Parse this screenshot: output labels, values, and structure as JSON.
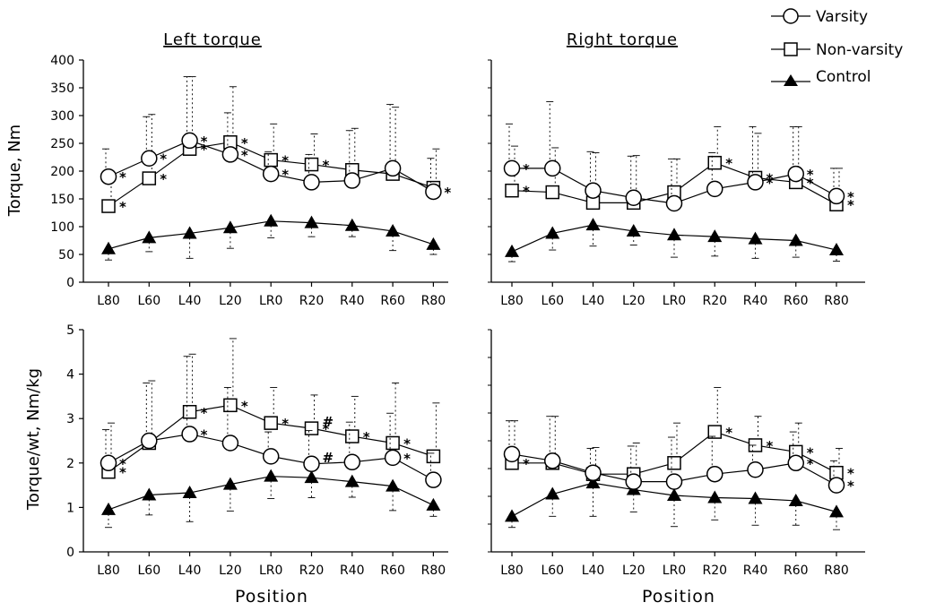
{
  "legend": {
    "varsity": "Varsity",
    "nonvarsity": "Non-varsity",
    "control": "Control"
  },
  "chart_data": [
    {
      "type": "line",
      "title": "Left torque",
      "ylabel": "Torque, Nm",
      "xlabel": "",
      "ylim": [
        0,
        400
      ],
      "yticks": [
        "0",
        "50",
        "100",
        "150",
        "200",
        "250",
        "300",
        "350",
        "400"
      ],
      "categories": [
        "L80",
        "L60",
        "L40",
        "L20",
        "LR0",
        "R20",
        "R40",
        "R60",
        "R80"
      ],
      "series": [
        {
          "name": "Varsity",
          "marker": "circle",
          "values": [
            190,
            223,
            255,
            230,
            195,
            180,
            183,
            205,
            163
          ],
          "errors": [
            50,
            75,
            115,
            75,
            40,
            50,
            90,
            115,
            60
          ],
          "stars": [
            1,
            1,
            1,
            1,
            1,
            0,
            0,
            0,
            1
          ],
          "hashes": [
            0,
            0,
            0,
            0,
            0,
            0,
            0,
            0,
            0
          ]
        },
        {
          "name": "Non-varsity",
          "marker": "square",
          "values": [
            137,
            187,
            240,
            252,
            220,
            212,
            202,
            195,
            170
          ],
          "errors": [
            55,
            115,
            130,
            100,
            65,
            55,
            75,
            120,
            70
          ],
          "stars": [
            1,
            1,
            1,
            1,
            1,
            1,
            0,
            0,
            0
          ],
          "hashes": [
            0,
            0,
            0,
            0,
            0,
            0,
            0,
            0,
            0
          ]
        },
        {
          "name": "Control",
          "marker": "triangle",
          "values": [
            60,
            80,
            88,
            98,
            110,
            107,
            102,
            92,
            68
          ],
          "errors": [
            20,
            25,
            45,
            37,
            30,
            25,
            20,
            35,
            18
          ],
          "stars": [
            0,
            0,
            0,
            0,
            0,
            0,
            0,
            0,
            0
          ],
          "hashes": [
            0,
            0,
            0,
            0,
            0,
            0,
            0,
            0,
            0
          ]
        }
      ]
    },
    {
      "type": "line",
      "title": "Right torque",
      "ylabel": "",
      "xlabel": "",
      "ylim": [
        0,
        400
      ],
      "yticks": [],
      "categories": [
        "L80",
        "L60",
        "L40",
        "L20",
        "LR0",
        "R20",
        "R40",
        "R60",
        "R80"
      ],
      "series": [
        {
          "name": "Varsity",
          "marker": "circle",
          "values": [
            205,
            205,
            165,
            152,
            142,
            168,
            180,
            195,
            155
          ],
          "errors": [
            80,
            120,
            70,
            75,
            80,
            65,
            100,
            85,
            50
          ],
          "stars": [
            1,
            0,
            0,
            0,
            0,
            0,
            1,
            1,
            1
          ],
          "hashes": [
            0,
            0,
            0,
            0,
            0,
            0,
            0,
            0,
            0
          ]
        },
        {
          "name": "Non-varsity",
          "marker": "square",
          "values": [
            165,
            162,
            143,
            143,
            162,
            215,
            188,
            180,
            140
          ],
          "errors": [
            80,
            80,
            90,
            85,
            60,
            65,
            80,
            100,
            65
          ],
          "stars": [
            1,
            0,
            0,
            0,
            0,
            1,
            1,
            1,
            1
          ],
          "hashes": [
            0,
            0,
            0,
            0,
            0,
            0,
            0,
            0,
            0
          ]
        },
        {
          "name": "Control",
          "marker": "triangle",
          "values": [
            55,
            88,
            103,
            92,
            85,
            82,
            78,
            75,
            58
          ],
          "errors": [
            18,
            30,
            38,
            25,
            40,
            35,
            35,
            30,
            20
          ],
          "stars": [
            0,
            0,
            0,
            0,
            0,
            0,
            0,
            0,
            0
          ],
          "hashes": [
            0,
            0,
            0,
            0,
            0,
            0,
            0,
            0,
            0
          ]
        }
      ]
    },
    {
      "type": "line",
      "title": "",
      "ylabel": "Torque/wt, Nm/kg",
      "xlabel": "Position",
      "ylim": [
        0,
        5
      ],
      "yticks": [
        "0",
        "1",
        "2",
        "3",
        "4",
        "5"
      ],
      "categories": [
        "L80",
        "L60",
        "L40",
        "L20",
        "LR0",
        "R20",
        "R40",
        "R60",
        "R80"
      ],
      "series": [
        {
          "name": "Varsity",
          "marker": "circle",
          "values": [
            2.0,
            2.5,
            2.65,
            2.45,
            2.15,
            1.98,
            2.02,
            2.12,
            1.62
          ],
          "errors": [
            0.75,
            1.3,
            1.75,
            1.25,
            0.55,
            0.75,
            0.9,
            1.0,
            0.6
          ],
          "stars": [
            1,
            0,
            1,
            0,
            0,
            0,
            0,
            1,
            0
          ],
          "hashes": [
            0,
            0,
            0,
            0,
            0,
            1,
            0,
            0,
            0
          ]
        },
        {
          "name": "Non-varsity",
          "marker": "square",
          "values": [
            1.8,
            2.45,
            3.15,
            3.3,
            2.9,
            2.78,
            2.6,
            2.45,
            2.15
          ],
          "errors": [
            1.1,
            1.4,
            1.3,
            1.5,
            0.8,
            0.75,
            0.9,
            1.35,
            1.2
          ],
          "stars": [
            1,
            0,
            1,
            1,
            1,
            1,
            1,
            1,
            0
          ],
          "hashes": [
            0,
            0,
            0,
            0,
            0,
            1,
            0,
            0,
            0
          ]
        },
        {
          "name": "Control",
          "marker": "triangle",
          "values": [
            0.95,
            1.28,
            1.33,
            1.52,
            1.7,
            1.67,
            1.58,
            1.48,
            1.05
          ],
          "errors": [
            0.4,
            0.45,
            0.65,
            0.6,
            0.5,
            0.45,
            0.35,
            0.55,
            0.25
          ],
          "stars": [
            0,
            0,
            0,
            0,
            0,
            0,
            0,
            0,
            0
          ],
          "hashes": [
            0,
            0,
            0,
            0,
            0,
            0,
            0,
            0,
            0
          ]
        }
      ]
    },
    {
      "type": "line",
      "title": "",
      "ylabel": "",
      "xlabel": "Position",
      "ylim": [
        0,
        5
      ],
      "yticks": [],
      "categories": [
        "L80",
        "L60",
        "L40",
        "L20",
        "LR0",
        "R20",
        "R40",
        "R60",
        "R80"
      ],
      "series": [
        {
          "name": "Varsity",
          "marker": "circle",
          "values": [
            2.2,
            2.05,
            1.78,
            1.58,
            1.58,
            1.75,
            1.85,
            2.0,
            1.5
          ],
          "errors": [
            0.75,
            1.0,
            0.55,
            0.8,
            1.0,
            0.85,
            0.55,
            0.7,
            0.55
          ],
          "stars": [
            0,
            0,
            0,
            0,
            0,
            0,
            0,
            1,
            1
          ],
          "hashes": [
            0,
            0,
            0,
            0,
            0,
            0,
            0,
            0,
            0
          ]
        },
        {
          "name": "Non-varsity",
          "marker": "square",
          "values": [
            2.0,
            2.0,
            1.75,
            1.75,
            2.0,
            2.7,
            2.4,
            2.25,
            1.78
          ],
          "errors": [
            0.95,
            1.05,
            0.6,
            0.7,
            0.9,
            1.0,
            0.65,
            0.65,
            0.55
          ],
          "stars": [
            1,
            0,
            0,
            0,
            0,
            1,
            1,
            1,
            1
          ],
          "hashes": [
            0,
            0,
            0,
            0,
            0,
            0,
            0,
            0,
            0
          ]
        },
        {
          "name": "Control",
          "marker": "triangle",
          "values": [
            0.8,
            1.3,
            1.55,
            1.4,
            1.27,
            1.22,
            1.2,
            1.15,
            0.9
          ],
          "errors": [
            0.25,
            0.5,
            0.75,
            0.5,
            0.7,
            0.5,
            0.6,
            0.55,
            0.4
          ],
          "stars": [
            0,
            0,
            0,
            0,
            0,
            0,
            0,
            0,
            0
          ],
          "hashes": [
            0,
            0,
            0,
            0,
            0,
            0,
            0,
            0,
            0
          ]
        }
      ]
    }
  ]
}
